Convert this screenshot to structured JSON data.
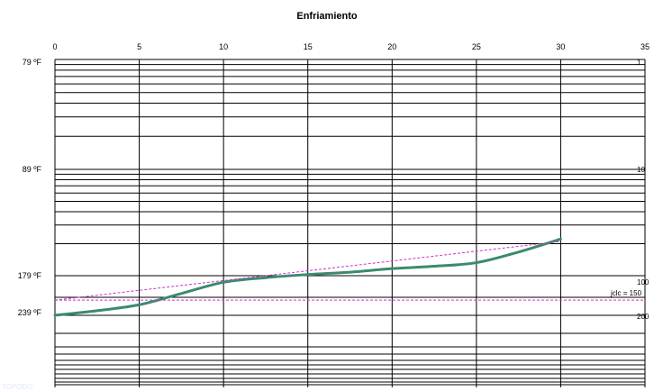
{
  "chart_data": {
    "type": "line",
    "title": "Enfriamiento",
    "x_ticks": [
      "0",
      "5",
      "10",
      "15",
      "20",
      "25",
      "30",
      "35"
    ],
    "xlim": [
      0,
      35
    ],
    "left_axis_labels": [
      "79 ºF",
      "89 ºF",
      "179 ºF",
      "239 ºF"
    ],
    "right_axis_labels": [
      "1",
      "10",
      "100",
      "200"
    ],
    "reference_label": "jclc = 150",
    "corner_label": "TOPODO",
    "grid": true,
    "series": [
      {
        "type": "curve",
        "color": "#3c8a6e",
        "x": [
          0,
          2.5,
          5,
          7.5,
          10,
          12.5,
          15,
          17.5,
          20,
          22.5,
          25,
          27.5,
          30
        ],
        "y": [
          239,
          232,
          223,
          206,
          189,
          182,
          178,
          176,
          173,
          171,
          168,
          159,
          148
        ]
      },
      {
        "type": "trend-dashed",
        "color": "#cc33cc",
        "x": [
          0,
          30
        ],
        "y": [
          216,
          150
        ]
      },
      {
        "type": "reference-dashed",
        "color": "#cc33cc",
        "x": [
          0,
          35
        ],
        "y": [
          216,
          216
        ]
      }
    ]
  }
}
